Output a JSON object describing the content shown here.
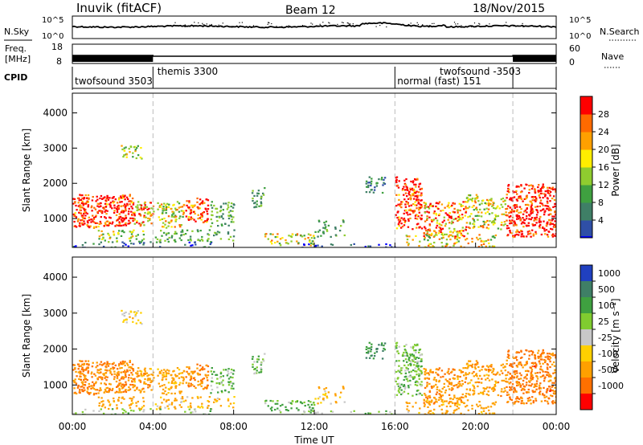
{
  "header": {
    "station": "Inuvik (fitACF)",
    "beam": "Beam 12",
    "date": "18/Nov/2015"
  },
  "chart_data": [
    {
      "type": "line",
      "panel": "nsky-nsearch",
      "left_label": "N.Sky",
      "right_label": "N.Search",
      "left_ticks": [
        "10^5",
        "10^0"
      ],
      "right_ticks": [
        "10^5",
        "10^0"
      ],
      "ylim": [
        0,
        100000
      ],
      "y_scale": "log"
    },
    {
      "type": "line",
      "panel": "freq-nave",
      "left_label": "Freq.",
      "left_unit": "[MHz]",
      "right_label": "Nave",
      "left_ticks": [
        "18",
        "8"
      ],
      "right_ticks": [
        "60",
        "0"
      ],
      "ylim_left": [
        8,
        18
      ],
      "ylim_right": [
        0,
        60
      ]
    },
    {
      "type": "table",
      "panel": "cpid",
      "label": "CPID",
      "boundary_hours": [
        4.0,
        16.0,
        21.85
      ],
      "segments": [
        {
          "text": "twofsound 3503",
          "hour": 0.0,
          "row": 2
        },
        {
          "text": "themis 3300",
          "hour": 4.1,
          "row": 1
        },
        {
          "text": "twofsound -3503",
          "hour": 18.1,
          "row": 1
        },
        {
          "text": "normal (fast) 151",
          "hour": 16.0,
          "row": 2
        }
      ]
    },
    {
      "type": "heatmap",
      "panel": "power",
      "ylabel": "Slant Range [km]",
      "yticks": [
        "1000",
        "2000",
        "3000",
        "4000"
      ],
      "ylim": [
        180,
        4560
      ],
      "colorbar_label": "Power [dB]",
      "colorbar_ticks": [
        "4",
        "8",
        "12",
        "16",
        "20",
        "24",
        "28"
      ],
      "colorbar_range": [
        0,
        32
      ],
      "colors": [
        "#0000ff",
        "#2f4fa6",
        "#3f7f66",
        "#3fa040",
        "#8fcc2f",
        "#ffee00",
        "#ffa000",
        "#ff6a00",
        "#ff0000"
      ]
    },
    {
      "type": "heatmap",
      "panel": "velocity",
      "xlabel": "Time UT",
      "xticks": [
        "00:00",
        "04:00",
        "08:00",
        "12:00",
        "16:00",
        "20:00",
        "00:00"
      ],
      "xlim": [
        0,
        24
      ],
      "ylabel": "Slant Range [km]",
      "yticks": [
        "1000",
        "2000",
        "3000",
        "4000"
      ],
      "ylim": [
        180,
        4560
      ],
      "colorbar_label": "Velocity [m s⁻¹]",
      "colorbar_ticks": [
        "1000",
        "500",
        "100",
        "25",
        "-25",
        "-100",
        "-500",
        "-1000"
      ],
      "colors": [
        "#2040c0",
        "#3f7f66",
        "#3fa040",
        "#80cc30",
        "#c8c8c8",
        "#ffd000",
        "#ffa000",
        "#ff7000",
        "#ff0000"
      ]
    }
  ]
}
